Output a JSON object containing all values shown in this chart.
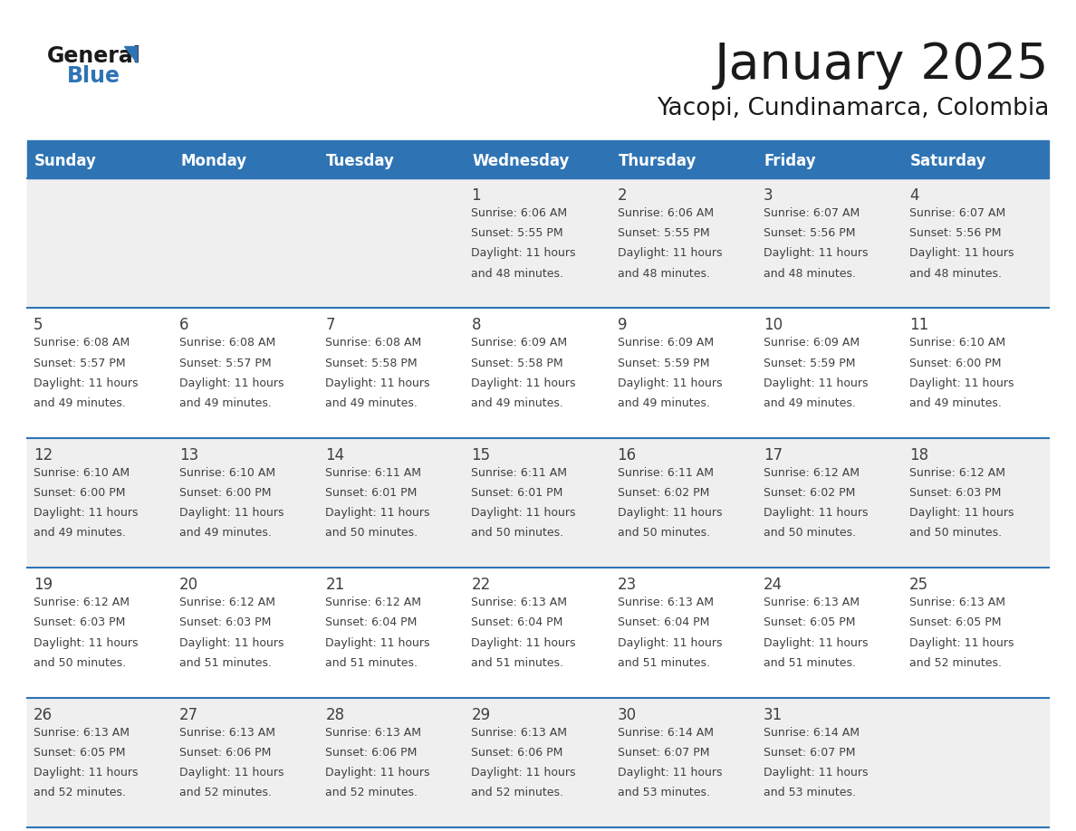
{
  "title": "January 2025",
  "subtitle": "Yacopi, Cundinamarca, Colombia",
  "header_bg_color": "#2E74B5",
  "header_text_color": "#FFFFFF",
  "cell_bg_odd": "#EFEFEF",
  "cell_bg_even": "#FFFFFF",
  "grid_line_color": "#2E74B5",
  "text_color": "#404040",
  "day_headers": [
    "Sunday",
    "Monday",
    "Tuesday",
    "Wednesday",
    "Thursday",
    "Friday",
    "Saturday"
  ],
  "days": [
    {
      "day": 1,
      "col": 3,
      "row": 0,
      "sunrise": "6:06 AM",
      "sunset": "5:55 PM",
      "daylight_hrs": "11 hours",
      "daylight_min": "and 48 minutes."
    },
    {
      "day": 2,
      "col": 4,
      "row": 0,
      "sunrise": "6:06 AM",
      "sunset": "5:55 PM",
      "daylight_hrs": "11 hours",
      "daylight_min": "and 48 minutes."
    },
    {
      "day": 3,
      "col": 5,
      "row": 0,
      "sunrise": "6:07 AM",
      "sunset": "5:56 PM",
      "daylight_hrs": "11 hours",
      "daylight_min": "and 48 minutes."
    },
    {
      "day": 4,
      "col": 6,
      "row": 0,
      "sunrise": "6:07 AM",
      "sunset": "5:56 PM",
      "daylight_hrs": "11 hours",
      "daylight_min": "and 48 minutes."
    },
    {
      "day": 5,
      "col": 0,
      "row": 1,
      "sunrise": "6:08 AM",
      "sunset": "5:57 PM",
      "daylight_hrs": "11 hours",
      "daylight_min": "and 49 minutes."
    },
    {
      "day": 6,
      "col": 1,
      "row": 1,
      "sunrise": "6:08 AM",
      "sunset": "5:57 PM",
      "daylight_hrs": "11 hours",
      "daylight_min": "and 49 minutes."
    },
    {
      "day": 7,
      "col": 2,
      "row": 1,
      "sunrise": "6:08 AM",
      "sunset": "5:58 PM",
      "daylight_hrs": "11 hours",
      "daylight_min": "and 49 minutes."
    },
    {
      "day": 8,
      "col": 3,
      "row": 1,
      "sunrise": "6:09 AM",
      "sunset": "5:58 PM",
      "daylight_hrs": "11 hours",
      "daylight_min": "and 49 minutes."
    },
    {
      "day": 9,
      "col": 4,
      "row": 1,
      "sunrise": "6:09 AM",
      "sunset": "5:59 PM",
      "daylight_hrs": "11 hours",
      "daylight_min": "and 49 minutes."
    },
    {
      "day": 10,
      "col": 5,
      "row": 1,
      "sunrise": "6:09 AM",
      "sunset": "5:59 PM",
      "daylight_hrs": "11 hours",
      "daylight_min": "and 49 minutes."
    },
    {
      "day": 11,
      "col": 6,
      "row": 1,
      "sunrise": "6:10 AM",
      "sunset": "6:00 PM",
      "daylight_hrs": "11 hours",
      "daylight_min": "and 49 minutes."
    },
    {
      "day": 12,
      "col": 0,
      "row": 2,
      "sunrise": "6:10 AM",
      "sunset": "6:00 PM",
      "daylight_hrs": "11 hours",
      "daylight_min": "and 49 minutes."
    },
    {
      "day": 13,
      "col": 1,
      "row": 2,
      "sunrise": "6:10 AM",
      "sunset": "6:00 PM",
      "daylight_hrs": "11 hours",
      "daylight_min": "and 49 minutes."
    },
    {
      "day": 14,
      "col": 2,
      "row": 2,
      "sunrise": "6:11 AM",
      "sunset": "6:01 PM",
      "daylight_hrs": "11 hours",
      "daylight_min": "and 50 minutes."
    },
    {
      "day": 15,
      "col": 3,
      "row": 2,
      "sunrise": "6:11 AM",
      "sunset": "6:01 PM",
      "daylight_hrs": "11 hours",
      "daylight_min": "and 50 minutes."
    },
    {
      "day": 16,
      "col": 4,
      "row": 2,
      "sunrise": "6:11 AM",
      "sunset": "6:02 PM",
      "daylight_hrs": "11 hours",
      "daylight_min": "and 50 minutes."
    },
    {
      "day": 17,
      "col": 5,
      "row": 2,
      "sunrise": "6:12 AM",
      "sunset": "6:02 PM",
      "daylight_hrs": "11 hours",
      "daylight_min": "and 50 minutes."
    },
    {
      "day": 18,
      "col": 6,
      "row": 2,
      "sunrise": "6:12 AM",
      "sunset": "6:03 PM",
      "daylight_hrs": "11 hours",
      "daylight_min": "and 50 minutes."
    },
    {
      "day": 19,
      "col": 0,
      "row": 3,
      "sunrise": "6:12 AM",
      "sunset": "6:03 PM",
      "daylight_hrs": "11 hours",
      "daylight_min": "and 50 minutes."
    },
    {
      "day": 20,
      "col": 1,
      "row": 3,
      "sunrise": "6:12 AM",
      "sunset": "6:03 PM",
      "daylight_hrs": "11 hours",
      "daylight_min": "and 51 minutes."
    },
    {
      "day": 21,
      "col": 2,
      "row": 3,
      "sunrise": "6:12 AM",
      "sunset": "6:04 PM",
      "daylight_hrs": "11 hours",
      "daylight_min": "and 51 minutes."
    },
    {
      "day": 22,
      "col": 3,
      "row": 3,
      "sunrise": "6:13 AM",
      "sunset": "6:04 PM",
      "daylight_hrs": "11 hours",
      "daylight_min": "and 51 minutes."
    },
    {
      "day": 23,
      "col": 4,
      "row": 3,
      "sunrise": "6:13 AM",
      "sunset": "6:04 PM",
      "daylight_hrs": "11 hours",
      "daylight_min": "and 51 minutes."
    },
    {
      "day": 24,
      "col": 5,
      "row": 3,
      "sunrise": "6:13 AM",
      "sunset": "6:05 PM",
      "daylight_hrs": "11 hours",
      "daylight_min": "and 51 minutes."
    },
    {
      "day": 25,
      "col": 6,
      "row": 3,
      "sunrise": "6:13 AM",
      "sunset": "6:05 PM",
      "daylight_hrs": "11 hours",
      "daylight_min": "and 52 minutes."
    },
    {
      "day": 26,
      "col": 0,
      "row": 4,
      "sunrise": "6:13 AM",
      "sunset": "6:05 PM",
      "daylight_hrs": "11 hours",
      "daylight_min": "and 52 minutes."
    },
    {
      "day": 27,
      "col": 1,
      "row": 4,
      "sunrise": "6:13 AM",
      "sunset": "6:06 PM",
      "daylight_hrs": "11 hours",
      "daylight_min": "and 52 minutes."
    },
    {
      "day": 28,
      "col": 2,
      "row": 4,
      "sunrise": "6:13 AM",
      "sunset": "6:06 PM",
      "daylight_hrs": "11 hours",
      "daylight_min": "and 52 minutes."
    },
    {
      "day": 29,
      "col": 3,
      "row": 4,
      "sunrise": "6:13 AM",
      "sunset": "6:06 PM",
      "daylight_hrs": "11 hours",
      "daylight_min": "and 52 minutes."
    },
    {
      "day": 30,
      "col": 4,
      "row": 4,
      "sunrise": "6:14 AM",
      "sunset": "6:07 PM",
      "daylight_hrs": "11 hours",
      "daylight_min": "and 53 minutes."
    },
    {
      "day": 31,
      "col": 5,
      "row": 4,
      "sunrise": "6:14 AM",
      "sunset": "6:07 PM",
      "daylight_hrs": "11 hours",
      "daylight_min": "and 53 minutes."
    }
  ],
  "logo_color_general": "#1a1a1a",
  "logo_color_blue": "#2E74B5",
  "logo_triangle_color": "#2E74B5",
  "title_fontsize": 40,
  "subtitle_fontsize": 19,
  "header_fontsize": 12,
  "day_number_fontsize": 12,
  "cell_text_fontsize": 9
}
